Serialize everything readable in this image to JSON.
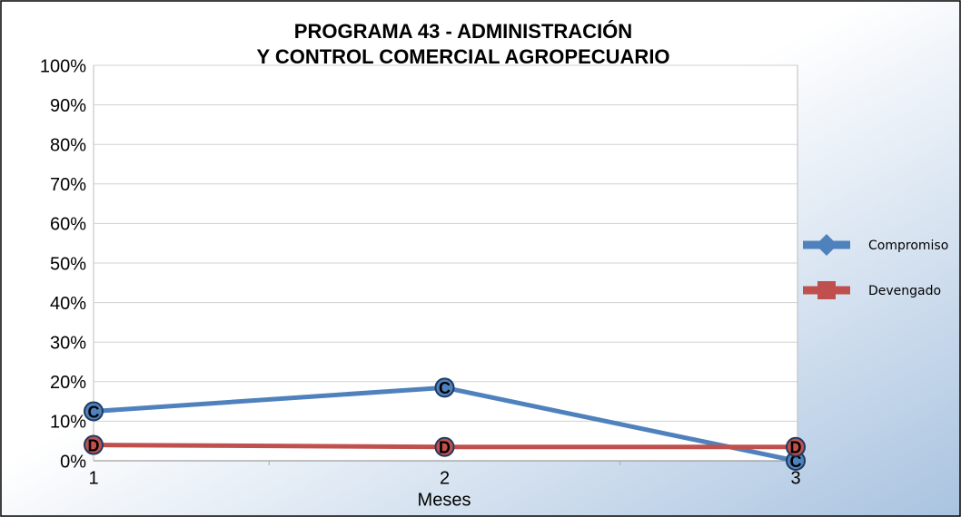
{
  "chart_data": {
    "type": "line",
    "title": [
      "PROGRAMA 43 - ADMINISTRACIÓN",
      "Y CONTROL COMERCIAL AGROPECUARIO"
    ],
    "x_label": "Meses",
    "categories": [
      "1",
      "2",
      "3"
    ],
    "series": [
      {
        "name": "Compromiso",
        "color": "#4f81bd",
        "marker_label": "C",
        "values": [
          12.5,
          18.5,
          0
        ]
      },
      {
        "name": "Devengado",
        "color": "#c0504d",
        "marker_label": "D",
        "values": [
          4,
          3.5,
          3.5
        ]
      }
    ],
    "ylim": [
      0,
      100
    ],
    "yticks": [
      {
        "value": 0,
        "label": "0%"
      },
      {
        "value": 10,
        "label": "10%"
      },
      {
        "value": 20,
        "label": "20%"
      },
      {
        "value": 30,
        "label": "30%"
      },
      {
        "value": 40,
        "label": "40%"
      },
      {
        "value": 50,
        "label": "50%"
      },
      {
        "value": 60,
        "label": "60%"
      },
      {
        "value": 70,
        "label": "70%"
      },
      {
        "value": 80,
        "label": "80%"
      },
      {
        "value": 90,
        "label": "90%"
      },
      {
        "value": 100,
        "label": "100%"
      }
    ],
    "grid": true,
    "legend": "right"
  }
}
